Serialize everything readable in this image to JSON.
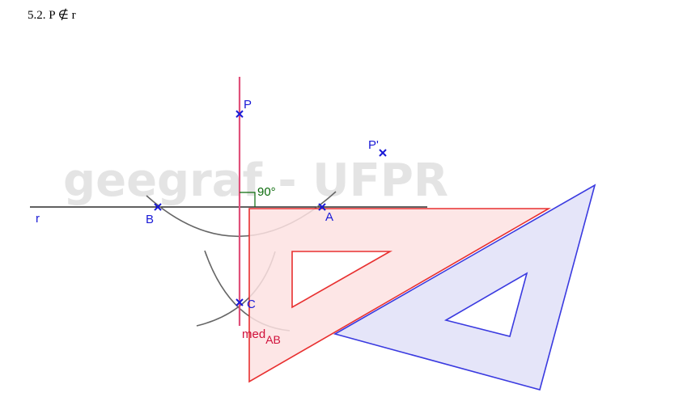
{
  "heading": "5.2. P ∉ r",
  "watermark": "geegraf - UFPR",
  "labels": {
    "r": "r",
    "P": "P",
    "P_prime": "P'",
    "A": "A",
    "B": "B",
    "C": "C",
    "angle": "90°",
    "med": "med",
    "med_sub": "AB"
  },
  "colors": {
    "points": "#1a1ad6",
    "perpendicular_line": "#e0507a",
    "set_square_red": "#e83030",
    "set_square_red_fill": "#fde2e2",
    "set_square_blue": "#3a3ae0",
    "set_square_blue_fill": "#e2e2f8",
    "arcs": "#666666",
    "angle_mark": "#0a6a0a"
  }
}
